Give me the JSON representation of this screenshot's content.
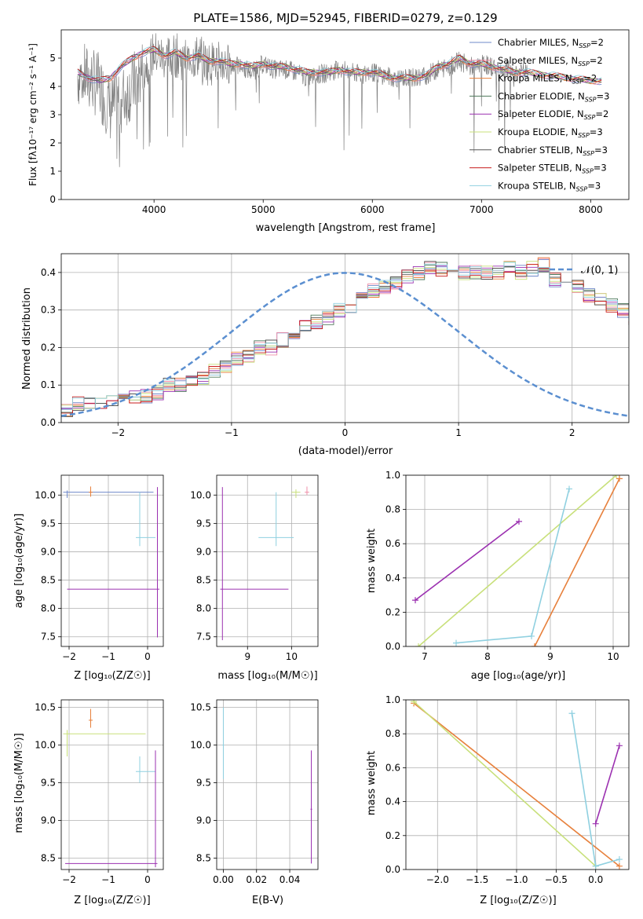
{
  "colors": [
    "#6f88c9",
    "#ef8fa8",
    "#e7803c",
    "#4f7a5c",
    "#9b30b0",
    "#c8e07a",
    "#555555",
    "#c81e1e",
    "#8fd0e0"
  ],
  "chart_data": [
    {
      "id": "spectrum",
      "type": "line",
      "title": "PLATE=1586, MJD=52945, FIBERID=0279, z=0.129",
      "xlabel": "wavelength [Angstrom, rest frame]",
      "ylabel": "Flux [fλ10⁻¹⁷ erg cm⁻² s⁻¹ A⁻¹]",
      "xlim": [
        3150,
        8350
      ],
      "ylim": [
        0,
        6
      ],
      "xticks": [
        4000,
        5000,
        6000,
        7000,
        8000
      ],
      "yticks": [
        0,
        1,
        2,
        3,
        4,
        5
      ],
      "grid": false,
      "legend_position": "top-right",
      "data_color": "#808080",
      "data": {
        "x": [
          3300,
          3400,
          3500,
          3600,
          3700,
          3800,
          3900,
          4000,
          4100,
          4200,
          4300,
          4400,
          4500,
          4600,
          4700,
          4800,
          4900,
          5000,
          5100,
          5200,
          5300,
          5400,
          5500,
          5600,
          5700,
          5800,
          5900,
          6000,
          6100,
          6200,
          6300,
          6400,
          6500,
          6600,
          6700,
          6800,
          6900,
          7000,
          7100,
          7200,
          7300,
          7400
        ],
        "y": [
          4.4,
          4.3,
          4.0,
          3.2,
          3.5,
          4.0,
          4.6,
          5.2,
          5.0,
          5.1,
          4.9,
          5.1,
          4.8,
          4.9,
          4.7,
          4.7,
          4.5,
          4.8,
          4.6,
          4.6,
          4.5,
          4.3,
          4.4,
          4.5,
          4.6,
          4.5,
          4.4,
          4.5,
          4.4,
          4.3,
          4.3,
          4.3,
          4.4,
          4.6,
          4.7,
          4.9,
          4.7,
          4.8,
          4.7,
          4.6,
          4.5,
          4.5
        ]
      },
      "model": {
        "x": [
          3300,
          3400,
          3500,
          3600,
          3700,
          3800,
          3900,
          4000,
          4100,
          4200,
          4300,
          4400,
          4500,
          4600,
          4700,
          4800,
          4900,
          5000,
          5100,
          5200,
          5300,
          5400,
          5500,
          5600,
          5700,
          5800,
          5900,
          6000,
          6100,
          6200,
          6300,
          6400,
          6500,
          6600,
          6700,
          6800,
          6900,
          7000,
          7100,
          7200,
          7300,
          7400,
          7600,
          7800,
          8000,
          8100
        ],
        "y": [
          4.5,
          4.3,
          4.2,
          4.3,
          4.7,
          5.0,
          5.2,
          5.3,
          5.1,
          5.2,
          5.0,
          5.1,
          4.9,
          4.9,
          4.8,
          4.8,
          4.7,
          4.8,
          4.7,
          4.7,
          4.6,
          4.5,
          4.5,
          4.5,
          4.6,
          4.5,
          4.5,
          4.5,
          4.4,
          4.3,
          4.3,
          4.3,
          4.4,
          4.7,
          4.8,
          5.0,
          4.8,
          4.8,
          4.7,
          4.6,
          4.5,
          4.5,
          4.4,
          4.3,
          4.2,
          4.2
        ]
      },
      "legend": [
        {
          "label": "Chabrier MILES, N",
          "sub": "SSP",
          "suffix": "=2"
        },
        {
          "label": "Salpeter MILES, N",
          "sub": "SSP",
          "suffix": "=2"
        },
        {
          "label": "Kroupa MILES, N",
          "sub": "SSP",
          "suffix": "=2"
        },
        {
          "label": "Chabrier ELODIE, N",
          "sub": "SSP",
          "suffix": "=3"
        },
        {
          "label": "Salpeter ELODIE, N",
          "sub": "SSP",
          "suffix": "=2"
        },
        {
          "label": "Kroupa ELODIE, N",
          "sub": "SSP",
          "suffix": "=3"
        },
        {
          "label": "Chabrier STELIB, N",
          "sub": "SSP",
          "suffix": "=3"
        },
        {
          "label": "Salpeter STELIB, N",
          "sub": "SSP",
          "suffix": "=3"
        },
        {
          "label": "Kroupa STELIB, N",
          "sub": "SSP",
          "suffix": "=3"
        }
      ]
    },
    {
      "id": "residuals",
      "type": "histogram",
      "xlabel": "(data-model)/error",
      "ylabel": "Normed distribution",
      "xlim": [
        -2.5,
        2.5
      ],
      "ylim": [
        0,
        0.45
      ],
      "xticks": [
        -2,
        -1,
        0,
        1,
        2
      ],
      "yticks": [
        0.0,
        0.1,
        0.2,
        0.3,
        0.4
      ],
      "grid": true,
      "legend": "𝒩(0, 1)",
      "legend_position": "top-right",
      "bin_width": 0.1,
      "bins_start": -2.5,
      "values": [
        0.03,
        0.05,
        0.05,
        0.05,
        0.06,
        0.06,
        0.07,
        0.07,
        0.08,
        0.1,
        0.1,
        0.11,
        0.12,
        0.14,
        0.15,
        0.17,
        0.18,
        0.2,
        0.2,
        0.22,
        0.24,
        0.26,
        0.27,
        0.28,
        0.3,
        0.31,
        0.33,
        0.35,
        0.36,
        0.37,
        0.39,
        0.4,
        0.41,
        0.41,
        0.4,
        0.4,
        0.4,
        0.4,
        0.4,
        0.41,
        0.4,
        0.41,
        0.42,
        0.38,
        0.38,
        0.36,
        0.34,
        0.33,
        0.31,
        0.3,
        0.28,
        0.27,
        0.25,
        0.24,
        0.22,
        0.21,
        0.2,
        0.18,
        0.17,
        0.15,
        0.14,
        0.13,
        0.12,
        0.11,
        0.1,
        0.09,
        0.08,
        0.07,
        0.06,
        0.05,
        0.04,
        0.03
      ],
      "normal_curve": true
    },
    {
      "id": "age-Z",
      "type": "errorbar",
      "xlabel": "Z [log₁₀(Z/Z☉)]",
      "ylabel": "age  [log₁₀(age/yr)]",
      "xlim": [
        -2.2,
        0.4
      ],
      "ylim": [
        7.33,
        10.35
      ],
      "xticks": [
        -2,
        -1,
        0
      ],
      "yticks": [
        7.5,
        8.0,
        8.5,
        9.0,
        9.5,
        10.0
      ],
      "grid": true,
      "points": [
        {
          "x": -2.05,
          "y": 10.05,
          "series": 0
        },
        {
          "x": -0.2,
          "y": 9.25,
          "series": 8
        },
        {
          "x": 0.25,
          "y": 8.34,
          "series": 4
        },
        {
          "x": -1.45,
          "y": 10.05,
          "series": 2
        }
      ]
    },
    {
      "id": "age-mass",
      "type": "errorbar",
      "xlabel": "mass [log₁₀(M/M☉)]",
      "ylabel": "",
      "xlim": [
        8.3,
        10.6
      ],
      "ylim": [
        7.33,
        10.35
      ],
      "xticks": [
        9,
        10
      ],
      "yticks": [
        7.5,
        8.0,
        8.5,
        9.0,
        9.5,
        10.0
      ],
      "grid": true,
      "points": [
        {
          "x": 8.43,
          "y": 8.34,
          "series": 4
        },
        {
          "x": 9.65,
          "y": 9.25,
          "series": 8
        },
        {
          "x": 10.35,
          "y": 10.05,
          "series": 1
        },
        {
          "x": 10.1,
          "y": 10.05,
          "series": 5
        }
      ]
    },
    {
      "id": "weight-age",
      "type": "line",
      "xlabel": "age  [log₁₀(age/yr)]",
      "ylabel": "mass weight",
      "xlim": [
        6.7,
        10.25
      ],
      "ylim": [
        0,
        1
      ],
      "xticks": [
        7,
        8,
        9,
        10
      ],
      "yticks": [
        0.0,
        0.2,
        0.4,
        0.6,
        0.8,
        1.0
      ],
      "grid": true,
      "series": [
        {
          "color_index": 4,
          "x": [
            6.85,
            8.5
          ],
          "y": [
            0.27,
            0.73
          ]
        },
        {
          "color_index": 5,
          "x": [
            6.9,
            10.05
          ],
          "y": [
            0.0,
            1.0
          ]
        },
        {
          "color_index": 2,
          "x": [
            8.75,
            10.1
          ],
          "y": [
            0.0,
            0.98
          ]
        },
        {
          "color_index": 8,
          "x": [
            7.5,
            8.7,
            9.3
          ],
          "y": [
            0.02,
            0.06,
            0.92
          ]
        }
      ]
    },
    {
      "id": "mass-Z",
      "type": "errorbar",
      "xlabel": "Z [log₁₀(Z/Z☉)]",
      "ylabel": "mass [log₁₀(M/M☉)]",
      "xlim": [
        -2.2,
        0.4
      ],
      "ylim": [
        8.35,
        10.6
      ],
      "xticks": [
        -2,
        -1,
        0
      ],
      "yticks": [
        8.5,
        9.0,
        9.5,
        10.0,
        10.5
      ],
      "grid": true,
      "points": [
        {
          "x": -2.05,
          "y": 10.15,
          "series": 5
        },
        {
          "x": -0.2,
          "y": 9.65,
          "series": 8
        },
        {
          "x": 0.2,
          "y": 8.43,
          "series": 4
        },
        {
          "x": -1.45,
          "y": 10.33,
          "series": 2
        }
      ]
    },
    {
      "id": "mass-EBV",
      "type": "errorbar",
      "xlabel": "E(B-V)",
      "ylabel": "",
      "xlim": [
        -0.004,
        0.057
      ],
      "ylim": [
        8.35,
        10.6
      ],
      "xticks": [
        0.0,
        0.02,
        0.04
      ],
      "yticks": [
        8.5,
        9.0,
        9.5,
        10.0,
        10.5
      ],
      "grid": true,
      "points": [
        {
          "x": 0.0,
          "y": 10.0,
          "series": 8
        },
        {
          "x": 0.053,
          "y": 9.15,
          "series": 4
        }
      ]
    },
    {
      "id": "weight-Z",
      "type": "line",
      "xlabel": "Z [log₁₀(Z/Z☉)]",
      "ylabel": "mass weight",
      "xlim": [
        -2.4,
        0.42
      ],
      "ylim": [
        0,
        1
      ],
      "xticks": [
        -2.0,
        -1.5,
        -1.0,
        -0.5,
        0.0
      ],
      "yticks": [
        0.0,
        0.2,
        0.4,
        0.6,
        0.8,
        1.0
      ],
      "grid": true,
      "series": [
        {
          "color_index": 2,
          "x": [
            -2.3,
            0.3
          ],
          "y": [
            0.98,
            0.02
          ]
        },
        {
          "color_index": 5,
          "x": [
            -2.3,
            0.0
          ],
          "y": [
            0.99,
            0.02
          ]
        },
        {
          "color_index": 8,
          "x": [
            -0.3,
            0.0,
            0.3
          ],
          "y": [
            0.92,
            0.02,
            0.06
          ]
        },
        {
          "color_index": 4,
          "x": [
            0.0,
            0.3
          ],
          "y": [
            0.27,
            0.73
          ]
        }
      ]
    }
  ]
}
